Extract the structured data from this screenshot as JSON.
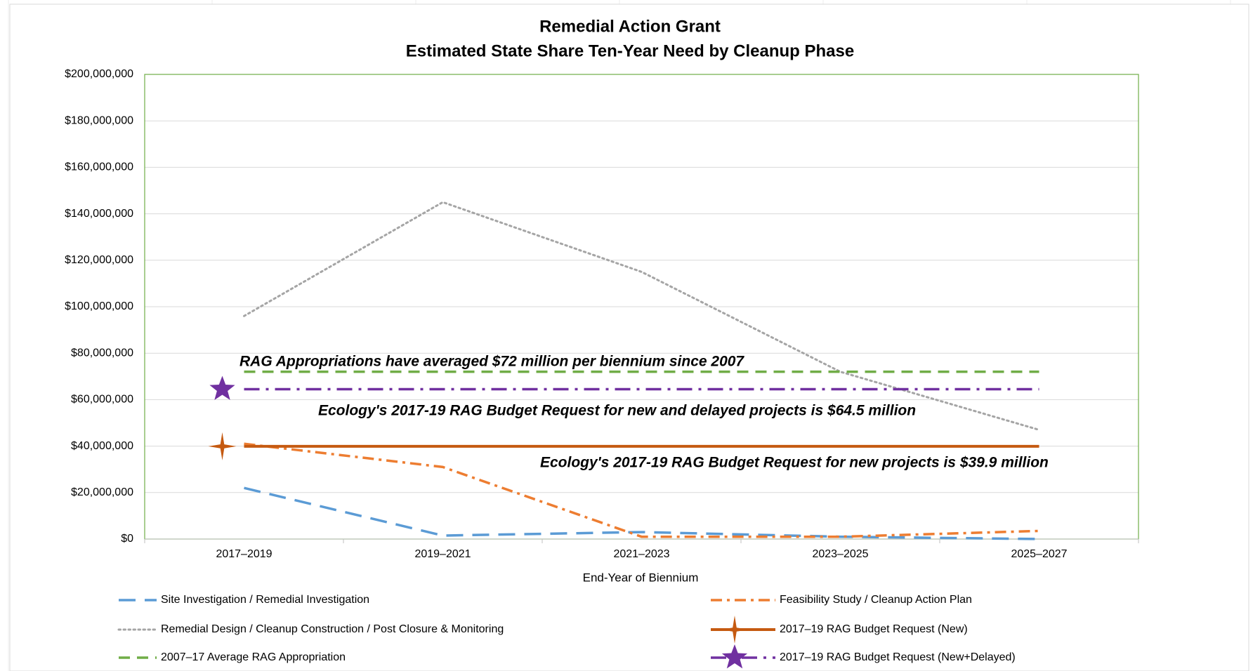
{
  "chart_data": {
    "type": "line",
    "title": "Remedial Action Grant",
    "subtitle": "Estimated State Share Ten-Year Need by Cleanup Phase",
    "x_label": "End-Year of Biennium",
    "categories": [
      "2017–2019",
      "2019–2021",
      "2021–2023",
      "2023–2025",
      "2025–2027"
    ],
    "ylim": [
      0,
      200000000
    ],
    "yticks": [
      {
        "value": 0,
        "label": "$0"
      },
      {
        "value": 20000000,
        "label": "$20,000,000"
      },
      {
        "value": 40000000,
        "label": "$40,000,000"
      },
      {
        "value": 60000000,
        "label": "$60,000,000"
      },
      {
        "value": 80000000,
        "label": "$80,000,000"
      },
      {
        "value": 100000000,
        "label": "$100,000,000"
      },
      {
        "value": 120000000,
        "label": "$120,000,000"
      },
      {
        "value": 140000000,
        "label": "$140,000,000"
      },
      {
        "value": 160000000,
        "label": "$160,000,000"
      },
      {
        "value": 180000000,
        "label": "$180,000,000"
      },
      {
        "value": 200000000,
        "label": "$200,000,000"
      }
    ],
    "grid": true,
    "series": [
      {
        "name": "Site Investigation / Remedial Investigation",
        "color": "#5b9bd5",
        "dash": "dashed",
        "values": [
          22000000,
          1500000,
          3000000,
          1000000,
          0
        ]
      },
      {
        "name": "Feasibility Study / Cleanup Action Plan",
        "color": "#ed7d31",
        "dash": "dashdot",
        "values": [
          41000000,
          31000000,
          1000000,
          1000000,
          3500000
        ]
      },
      {
        "name": "Remedial Design / Cleanup Construction / Post Closure & Monitoring",
        "color": "#a5a5a5",
        "dash": "dotted",
        "values": [
          96000000,
          145000000,
          115000000,
          72000000,
          47000000
        ]
      },
      {
        "name": "2017–19 RAG Budget Request (New)",
        "color": "#c55a11",
        "dash": "solid",
        "marker": "star4",
        "values": [
          39900000,
          39900000,
          39900000,
          39900000,
          39900000
        ]
      },
      {
        "name": "2007–17 Average RAG Appropriation",
        "color": "#70ad47",
        "dash": "longdash",
        "values": [
          72000000,
          72000000,
          72000000,
          72000000,
          72000000
        ]
      },
      {
        "name": "2017–19 RAG Budget Request (New+Delayed)",
        "color": "#7030a0",
        "dash": "longdashdot",
        "marker": "star5",
        "values": [
          64500000,
          64500000,
          64500000,
          64500000,
          64500000
        ]
      }
    ],
    "annotations": [
      "RAG Appropriations have averaged $72 million per biennium since 2007",
      "Ecology's 2017-19 RAG Budget Request for new and delayed projects is $64.5 million",
      "Ecology's 2017-19 RAG Budget Request for new projects is $39.9 million"
    ]
  }
}
